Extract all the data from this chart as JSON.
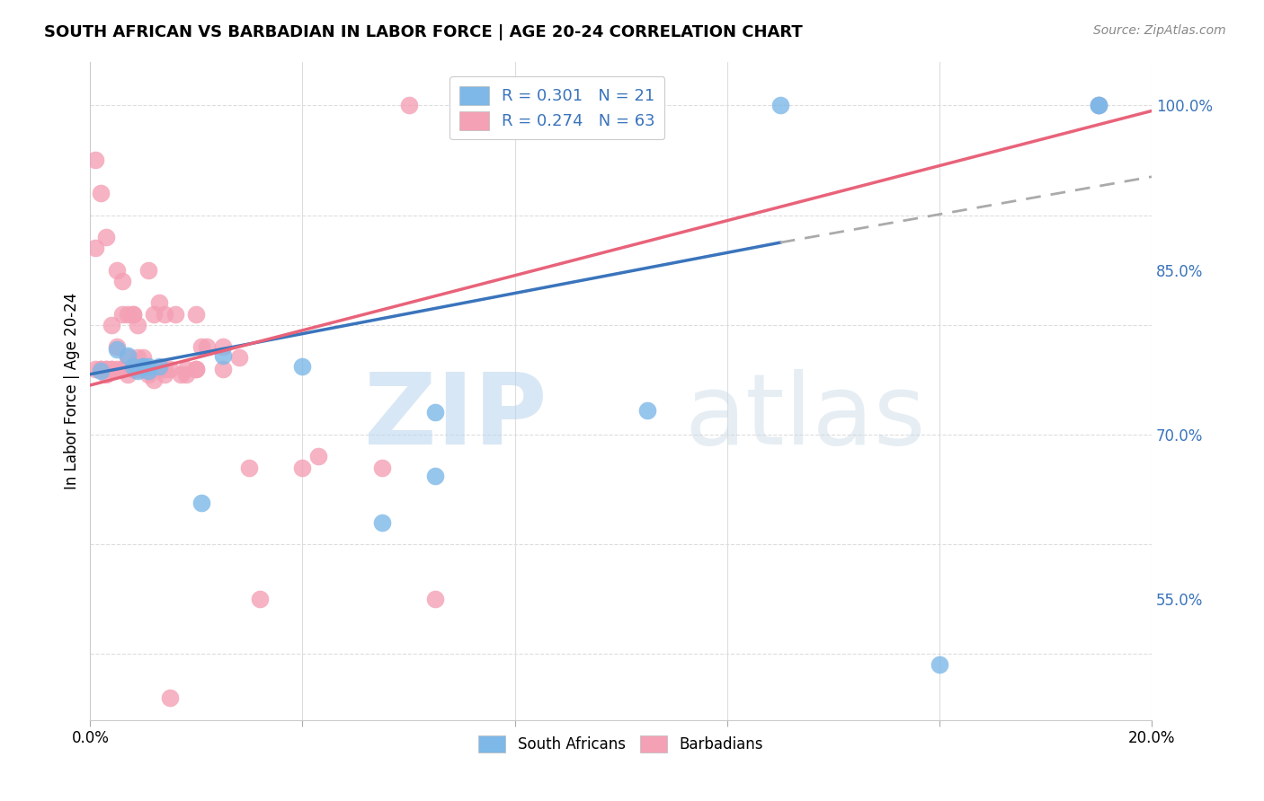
{
  "title": "SOUTH AFRICAN VS BARBADIAN IN LABOR FORCE | AGE 20-24 CORRELATION CHART",
  "source": "Source: ZipAtlas.com",
  "ylabel": "In Labor Force | Age 20-24",
  "xlim": [
    0.0,
    0.2
  ],
  "ylim": [
    0.44,
    1.04
  ],
  "yticks": [
    0.55,
    0.7,
    0.85,
    1.0
  ],
  "yticklabels": [
    "55.0%",
    "70.0%",
    "85.0%",
    "100.0%"
  ],
  "xtick_positions": [
    0.0,
    0.04,
    0.08,
    0.12,
    0.16,
    0.2
  ],
  "xticklabels": [
    "0.0%",
    "",
    "",
    "",
    "",
    "20.0%"
  ],
  "blue_color": "#7db8e8",
  "pink_color": "#f4a0b5",
  "blue_line_color": "#3a74bc",
  "pink_line_color": "#e8637a",
  "dashed_line_color": "#aaaaaa",
  "watermark_zip": "ZIP",
  "watermark_atlas": "atlas",
  "legend_line1": "R = 0.301   N = 21",
  "legend_line2": "R = 0.274   N = 63",
  "label_south": "South Africans",
  "label_barb": "Barbadians",
  "background_color": "#ffffff",
  "grid_color": "#dddddd",
  "blue_line_x0": 0.0,
  "blue_line_y0": 0.755,
  "blue_line_x1": 0.13,
  "blue_line_y1": 0.875,
  "dashed_line_x0": 0.13,
  "dashed_line_y0": 0.875,
  "dashed_line_x1": 0.2,
  "dashed_line_y1": 0.935,
  "pink_line_x0": 0.0,
  "pink_line_y0": 0.745,
  "pink_line_x1": 0.2,
  "pink_line_y1": 0.995,
  "sa_x": [
    0.002,
    0.005,
    0.007,
    0.008,
    0.009,
    0.01,
    0.01,
    0.011,
    0.011,
    0.013,
    0.021,
    0.025,
    0.04,
    0.055,
    0.065,
    0.105,
    0.13,
    0.19,
    0.19,
    0.065,
    0.16
  ],
  "sa_y": [
    0.758,
    0.778,
    0.772,
    0.762,
    0.758,
    0.762,
    0.762,
    0.758,
    0.762,
    0.762,
    0.638,
    0.772,
    0.762,
    0.62,
    0.662,
    0.722,
    1.0,
    1.0,
    1.0,
    0.72,
    0.49
  ],
  "bb_x": [
    0.001,
    0.001,
    0.002,
    0.002,
    0.003,
    0.003,
    0.004,
    0.004,
    0.005,
    0.005,
    0.005,
    0.006,
    0.006,
    0.006,
    0.007,
    0.007,
    0.007,
    0.008,
    0.008,
    0.008,
    0.009,
    0.009,
    0.009,
    0.01,
    0.01,
    0.011,
    0.011,
    0.012,
    0.012,
    0.013,
    0.013,
    0.014,
    0.014,
    0.014,
    0.015,
    0.016,
    0.017,
    0.018,
    0.018,
    0.02,
    0.02,
    0.02,
    0.021,
    0.022,
    0.025,
    0.025,
    0.028,
    0.03,
    0.032,
    0.04,
    0.043,
    0.055,
    0.06,
    0.065,
    0.19,
    0.001,
    0.002,
    0.003,
    0.006,
    0.008,
    0.015,
    0.003,
    0.004
  ],
  "bb_y": [
    0.76,
    0.95,
    0.76,
    0.92,
    0.76,
    0.755,
    0.8,
    0.76,
    0.78,
    0.76,
    0.85,
    0.84,
    0.76,
    0.81,
    0.81,
    0.77,
    0.755,
    0.81,
    0.81,
    0.76,
    0.76,
    0.8,
    0.77,
    0.77,
    0.76,
    0.85,
    0.755,
    0.81,
    0.75,
    0.82,
    0.76,
    0.81,
    0.76,
    0.755,
    0.76,
    0.81,
    0.755,
    0.755,
    0.76,
    0.76,
    0.81,
    0.76,
    0.78,
    0.78,
    0.78,
    0.76,
    0.77,
    0.67,
    0.55,
    0.67,
    0.68,
    0.67,
    1.0,
    0.55,
    1.0,
    0.87,
    0.76,
    0.76,
    0.76,
    0.76,
    0.46,
    0.88,
    0.76
  ]
}
